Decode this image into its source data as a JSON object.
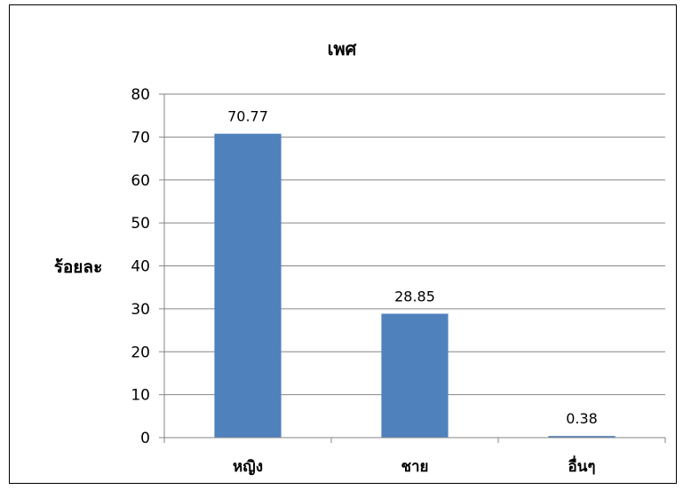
{
  "chart_data": {
    "type": "bar",
    "title": "เพศ",
    "ylabel": "ร้อยละ",
    "xlabel": "",
    "categories": [
      "หญิง",
      "ชาย",
      "อื่นๆ"
    ],
    "values": [
      70.77,
      28.85,
      0.38
    ],
    "data_labels": [
      "70.77",
      "28.85",
      "0.38"
    ],
    "ylim": [
      0,
      80
    ],
    "yticks": [
      "0",
      "10",
      "20",
      "30",
      "40",
      "50",
      "60",
      "70",
      "80"
    ],
    "grid": true,
    "legend": "none",
    "bar_color": "#4F81BD"
  }
}
